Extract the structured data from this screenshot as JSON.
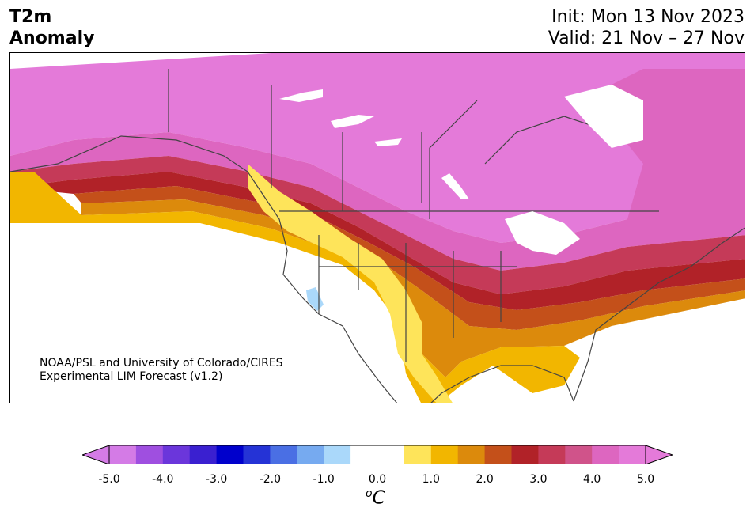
{
  "header": {
    "title_line1": "T2m",
    "title_line2": "Anomaly",
    "init": "Init: Mon 13 Nov 2023",
    "valid": "Valid: 21 Nov – 27 Nov"
  },
  "credit": {
    "line1": "NOAA/PSL and University of Colorado/CIRES",
    "line2": "Experimental LIM Forecast (v1.2)"
  },
  "colorbar": {
    "ticks": [
      "-5.0",
      "-4.0",
      "-3.0",
      "-2.0",
      "-1.0",
      "0.0",
      "1.0",
      "2.0",
      "3.0",
      "4.0",
      "5.0"
    ],
    "unit_sup": "o",
    "unit": "C",
    "colors": [
      "#d47be6",
      "#9f4fe0",
      "#6b36db",
      "#3a20d0",
      "#0000cc",
      "#2533d6",
      "#4a6fe4",
      "#76aaf0",
      "#aad8fa",
      "#ffffff",
      "#ffffff",
      "#fee45a",
      "#f2b600",
      "#dc8a0c",
      "#c4501a",
      "#b12228",
      "#c53a58",
      "#d0538a",
      "#dd66c0",
      "#e47ad9"
    ]
  },
  "map": {
    "palette": {
      "pink": "#e47ad9",
      "magenta": "#dd66c0",
      "rose": "#d0538a",
      "crimson": "#c53a58",
      "red": "#b12228",
      "rust": "#c4501a",
      "orange": "#dc8a0c",
      "amber": "#f2b600",
      "yellow": "#fee45a",
      "cool": "#aad8fa",
      "border": "#444444"
    }
  }
}
